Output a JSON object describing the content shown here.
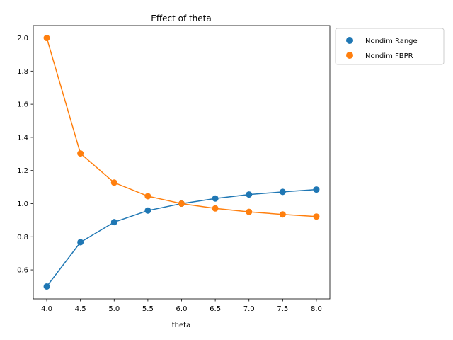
{
  "chart_data": {
    "type": "line",
    "title": "Effect of theta",
    "xlabel": "theta",
    "ylabel": "",
    "x": [
      4.0,
      4.5,
      5.0,
      5.5,
      6.0,
      6.5,
      7.0,
      7.5,
      8.0
    ],
    "xticks": [
      "4.0",
      "4.5",
      "5.0",
      "5.5",
      "6.0",
      "6.5",
      "7.0",
      "7.5",
      "8.0"
    ],
    "yticks": [
      "0.6",
      "0.8",
      "1.0",
      "1.2",
      "1.4",
      "1.6",
      "1.8",
      "2.0"
    ],
    "xlim": [
      3.8,
      8.2
    ],
    "ylim": [
      0.425,
      2.075
    ],
    "series": [
      {
        "name": "Nondim Range",
        "color": "#1f77b4",
        "values": [
          0.5,
          0.767,
          0.888,
          0.958,
          1.0,
          1.031,
          1.055,
          1.071,
          1.085
        ]
      },
      {
        "name": "Nondim FBPR",
        "color": "#ff7f0e",
        "values": [
          2.0,
          1.303,
          1.127,
          1.045,
          1.0,
          0.971,
          0.95,
          0.935,
          0.922
        ]
      }
    ],
    "legend": "outside-upper-right",
    "grid": false
  }
}
